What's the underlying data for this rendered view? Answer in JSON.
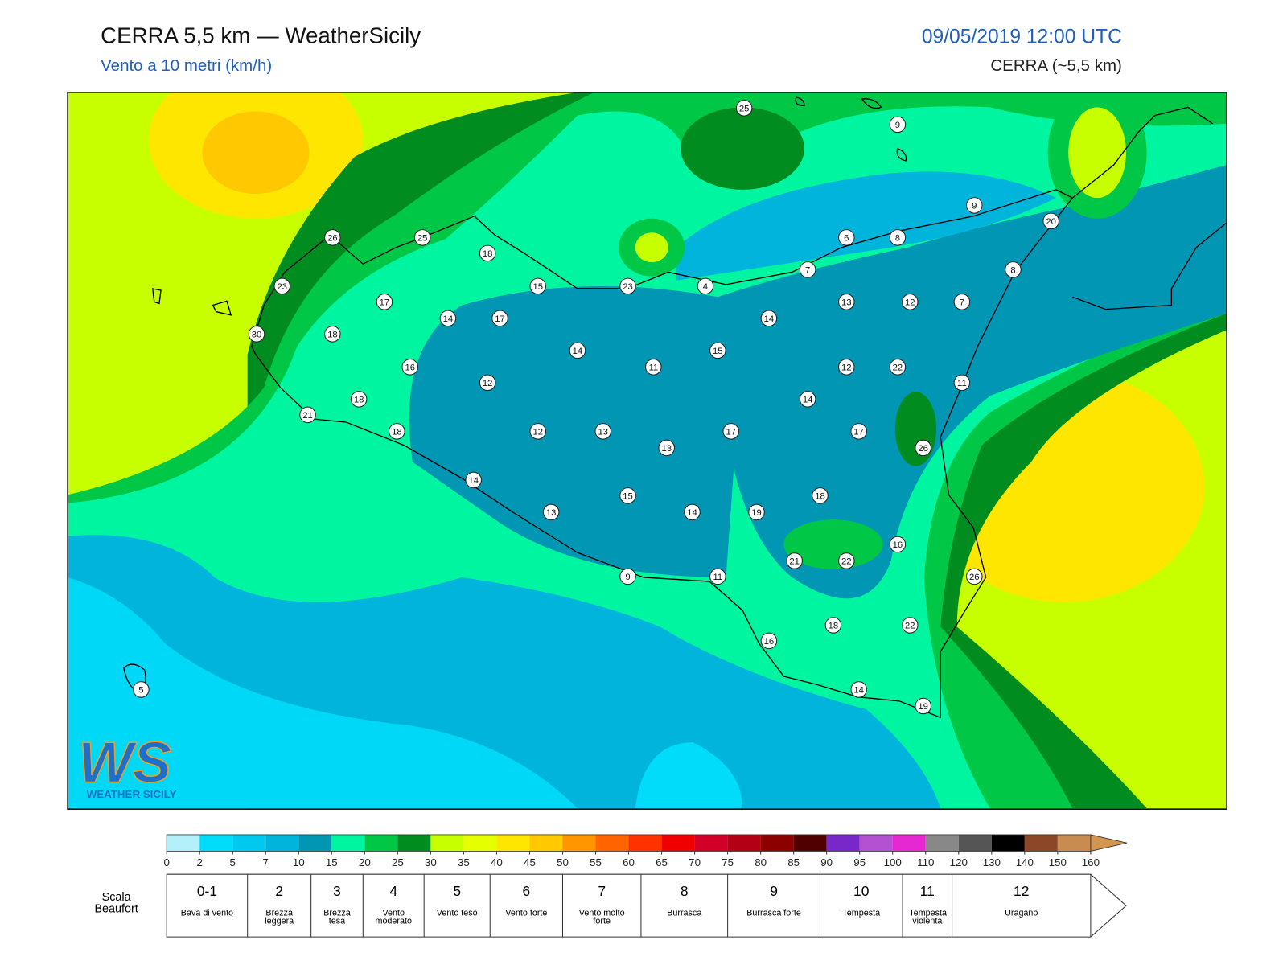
{
  "header": {
    "title": "CERRA 5,5 km — WeatherSicily",
    "subtitle": "Vento a 10 metri (km/h)",
    "datetime": "09/05/2019 12:00 UTC",
    "model": "CERRA (~5,5 km)"
  },
  "stations": [
    25,
    9,
    9,
    20,
    26,
    25,
    18,
    6,
    8,
    8,
    7,
    23,
    15,
    23,
    4,
    17,
    13,
    12,
    7,
    14,
    17,
    14,
    30,
    18,
    14,
    15,
    11,
    16,
    12,
    22,
    12,
    11,
    18,
    14,
    21,
    18,
    12,
    13,
    17,
    17,
    13,
    26,
    14,
    18,
    15,
    13,
    14,
    19,
    16,
    21,
    22,
    26,
    9,
    11,
    18,
    22,
    16,
    5,
    14,
    19
  ],
  "colorbar": {
    "ticks": [
      0,
      2,
      5,
      7,
      10,
      15,
      20,
      25,
      30,
      35,
      40,
      45,
      50,
      55,
      60,
      65,
      70,
      75,
      80,
      85,
      90,
      95,
      100,
      110,
      120,
      130,
      140,
      150,
      160
    ],
    "colors": [
      "#b4f0fa",
      "#00dcfa",
      "#00c8ee",
      "#00b4dc",
      "#0096b4",
      "#00f5a0",
      "#00c846",
      "#008c1e",
      "#c8ff00",
      "#e6ff00",
      "#ffe600",
      "#ffc800",
      "#ff9600",
      "#ff6400",
      "#ff3200",
      "#f00000",
      "#d20028",
      "#b40014",
      "#8c0000",
      "#500000",
      "#7828c8",
      "#b450d2",
      "#e628d2",
      "#888888",
      "#555555",
      "#000000",
      "#8c4628",
      "#c88c50"
    ],
    "extend_color": "#d29650"
  },
  "beaufort": {
    "label": "Scala Beaufort",
    "classes": [
      {
        "force": "0-1",
        "name": "Bava di vento"
      },
      {
        "force": "2",
        "name": "Brezza leggera"
      },
      {
        "force": "3",
        "name": "Brezza tesa"
      },
      {
        "force": "4",
        "name": "Vento moderato"
      },
      {
        "force": "5",
        "name": "Vento teso"
      },
      {
        "force": "6",
        "name": "Vento forte"
      },
      {
        "force": "7",
        "name": "Vento molto forte"
      },
      {
        "force": "8",
        "name": "Burrasca"
      },
      {
        "force": "9",
        "name": "Burrasca forte"
      },
      {
        "force": "10",
        "name": "Tempesta"
      },
      {
        "force": "11",
        "name": "Tempesta violenta"
      },
      {
        "force": "12",
        "name": "Uragano"
      }
    ]
  },
  "logo": {
    "mark": "WS",
    "name": "WEATHER SICILY"
  }
}
